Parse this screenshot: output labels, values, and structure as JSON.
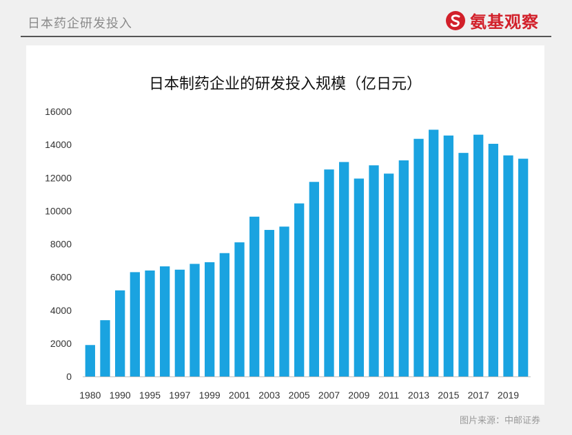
{
  "header": {
    "title": "日本药企研发投入",
    "logo_text": "氨基观察"
  },
  "footer": {
    "source_label": "图片来源",
    "source_value": "中邮证券"
  },
  "colors": {
    "bar": "#1AA3E0",
    "logo_red": "#D2202A"
  },
  "chart_data": {
    "type": "bar",
    "title": "日本制药企业的研发投入规模（亿日元）",
    "xlabel": "",
    "ylabel": "",
    "ylim": [
      0,
      16000
    ],
    "yticks": [
      0,
      2000,
      4000,
      6000,
      8000,
      10000,
      12000,
      14000,
      16000
    ],
    "grid": false,
    "categories": [
      "1980",
      "",
      "1990",
      "",
      "1995",
      "",
      "1997",
      "",
      "1999",
      "",
      "2001",
      "",
      "2003",
      "",
      "2005",
      "",
      "2007",
      "",
      "2009",
      "",
      "2011",
      "",
      "2013",
      "",
      "2015",
      "",
      "2017",
      "",
      "2019",
      ""
    ],
    "values": [
      1900,
      3400,
      5200,
      6300,
      6400,
      6650,
      6450,
      6800,
      6900,
      7450,
      8100,
      9650,
      8850,
      9050,
      10450,
      11750,
      12500,
      12950,
      11950,
      12750,
      12250,
      13050,
      14350,
      14900,
      14550,
      13500,
      14600,
      14050,
      13350,
      13150
    ]
  }
}
